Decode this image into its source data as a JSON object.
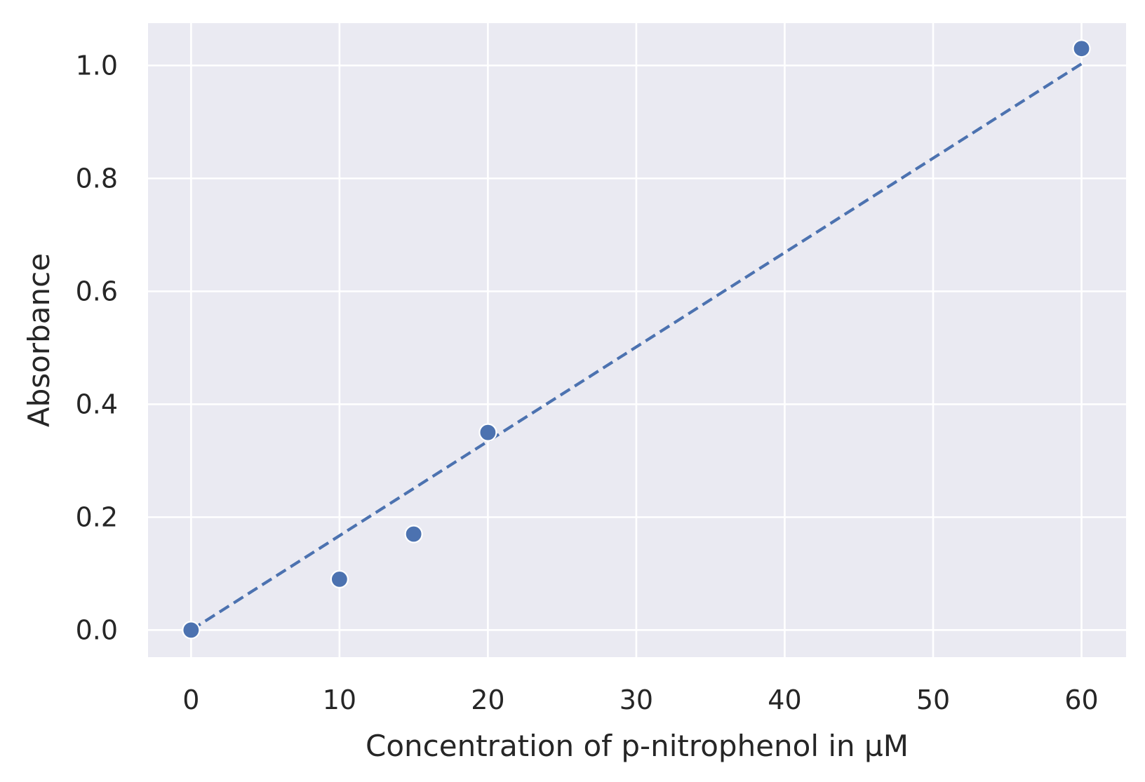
{
  "chart_data": {
    "type": "scatter",
    "xlabel": "Concentration of p-nitrophenol in µM",
    "ylabel": "Absorbance",
    "xlim": [
      -2.9,
      63
    ],
    "ylim": [
      -0.048,
      1.075
    ],
    "x_ticks": [
      0,
      10,
      20,
      30,
      40,
      50,
      60
    ],
    "x_tick_labels": [
      "0",
      "10",
      "20",
      "30",
      "40",
      "50",
      "60"
    ],
    "y_ticks": [
      0.0,
      0.2,
      0.4,
      0.6,
      0.8,
      1.0
    ],
    "y_tick_labels": [
      "0.0",
      "0.2",
      "0.4",
      "0.6",
      "0.8",
      "1.0"
    ],
    "grid": true,
    "series": [
      {
        "kind": "scatter",
        "x": [
          0,
          10,
          15,
          20,
          60
        ],
        "y": [
          0.0,
          0.09,
          0.17,
          0.35,
          1.03
        ],
        "color": "#4c72b0"
      },
      {
        "kind": "line",
        "style": "dashed",
        "x": [
          0,
          60
        ],
        "y": [
          0.0,
          1.003
        ],
        "color": "#4c72b0"
      }
    ],
    "colors": {
      "background": "#eaeaf2",
      "grid": "#ffffff",
      "text": "#262626"
    }
  }
}
